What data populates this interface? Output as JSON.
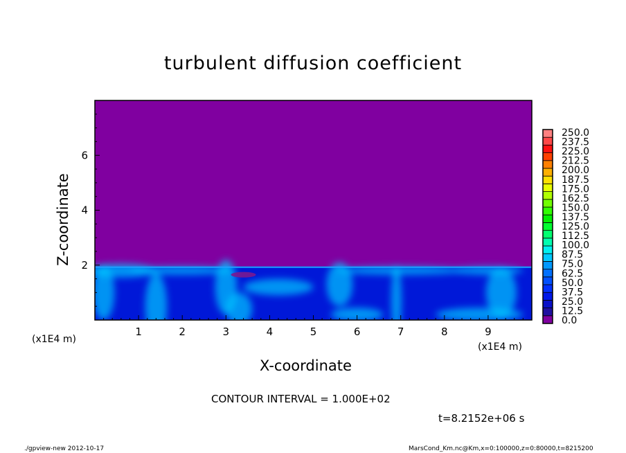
{
  "chart_data": {
    "type": "heatmap",
    "title": "turbulent diffusion coefficient",
    "xlabel": "X-coordinate",
    "ylabel": "Z-coordinate",
    "x_unit_label": "(x1E4 m)",
    "xlim": [
      0,
      10
    ],
    "ylim": [
      0,
      8
    ],
    "x_ticks": [
      "1",
      "2",
      "3",
      "4",
      "5",
      "6",
      "7",
      "8",
      "9"
    ],
    "y_ticks": [
      "2",
      "4",
      "6"
    ],
    "colorbar_levels": [
      "250.0",
      "237.5",
      "225.0",
      "212.5",
      "200.0",
      "187.5",
      "175.0",
      "162.5",
      "150.0",
      "137.5",
      "125.0",
      "112.5",
      "100.0",
      "87.5",
      "75.0",
      "62.5",
      "50.0",
      "37.5",
      "25.0",
      "12.5",
      "0.0"
    ],
    "colorbar_range": [
      0,
      250
    ],
    "background_value": 0.0,
    "turbulent_layer_top_z": 1.95,
    "colors": {
      "zero": "#8000a0",
      "low": "#0018d8",
      "mid": "#00c8ff",
      "high": "#ff8080"
    }
  },
  "annotations": {
    "contour_interval": "CONTOUR INTERVAL = 1.000E+02",
    "time": "t=8.2152e+06 s"
  },
  "footer": {
    "left": "./gpview-new  2012-10-17",
    "right": "MarsCond_Km.nc@Km,x=0:100000,z=0:80000,t=8215200"
  }
}
